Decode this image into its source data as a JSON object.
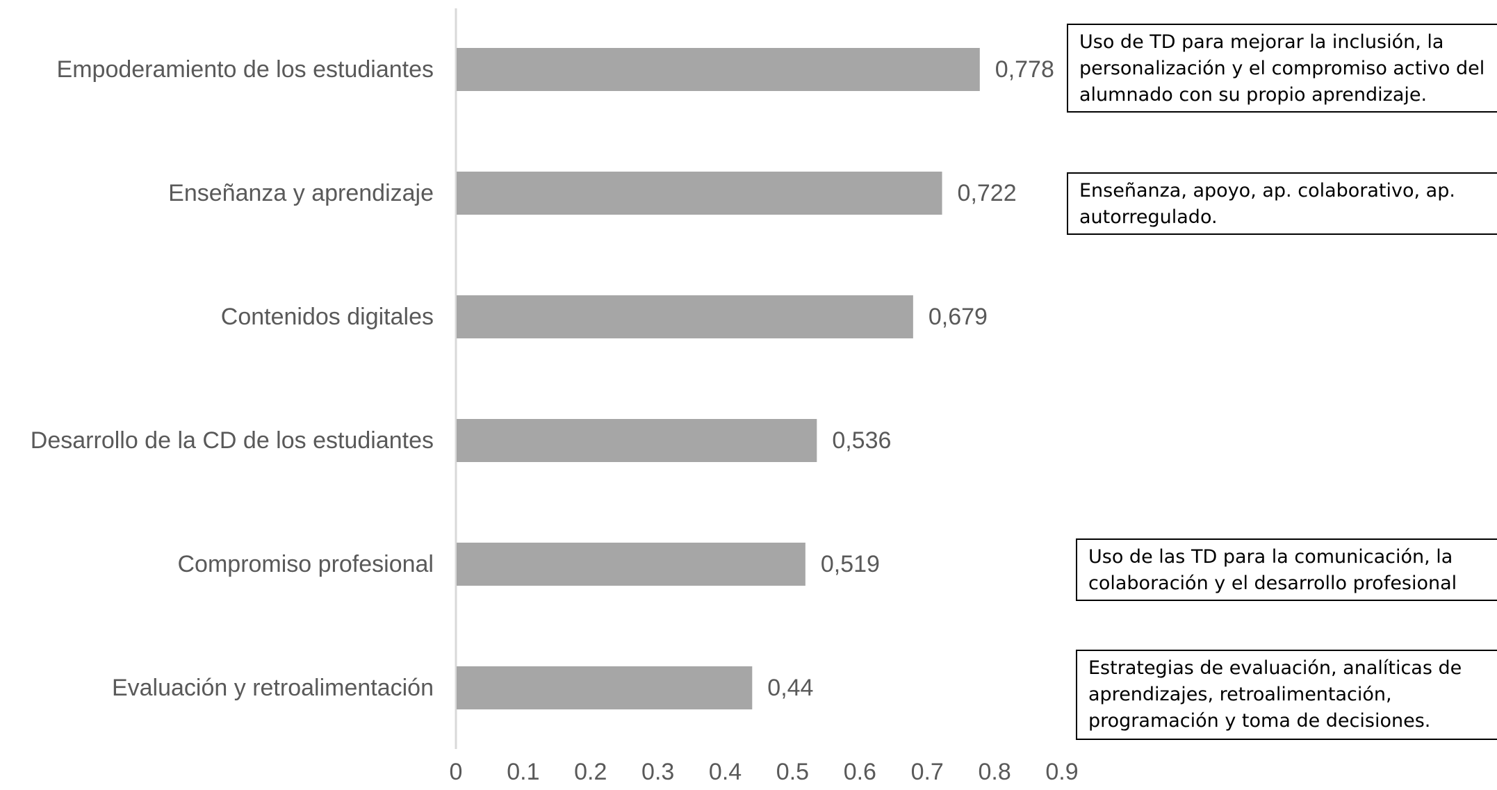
{
  "chart_data": {
    "type": "bar",
    "orientation": "horizontal",
    "categories": [
      "Empoderamiento de los estudiantes",
      "Enseñanza y aprendizaje",
      "Contenidos digitales",
      "Desarrollo de la CD de los estudiantes",
      "Compromiso profesional",
      "Evaluación y retroalimentación"
    ],
    "values": [
      0.778,
      0.722,
      0.679,
      0.536,
      0.519,
      0.44
    ],
    "value_labels": [
      "0,778",
      "0,722",
      "0,679",
      "0,536",
      "0,519",
      "0,44"
    ],
    "xlim": [
      0,
      0.9
    ],
    "xticks": [
      "0",
      "0.1",
      "0.2",
      "0.3",
      "0.4",
      "0.5",
      "0.6",
      "0.7",
      "0.8",
      "0.9"
    ],
    "title": "",
    "xlabel": "",
    "ylabel": "",
    "grid": false,
    "legend": "none",
    "colors": {
      "bar": "#a6a6a6",
      "axis": "#d9d9d9",
      "text": "#595959"
    }
  },
  "annotations": [
    "Uso de TD para mejorar la inclusión, la\npersonalización y el compromiso activo del\nalumnado con su propio aprendizaje.",
    "Enseñanza, apoyo, ap. colaborativo, ap.\nautorregulado.",
    "Uso de las TD para la comunicación, la\ncolaboración y el desarrollo profesional",
    "Estrategias de evaluación, analíticas de\naprendizajes, retroalimentación,\nprogramación y toma de decisiones."
  ]
}
